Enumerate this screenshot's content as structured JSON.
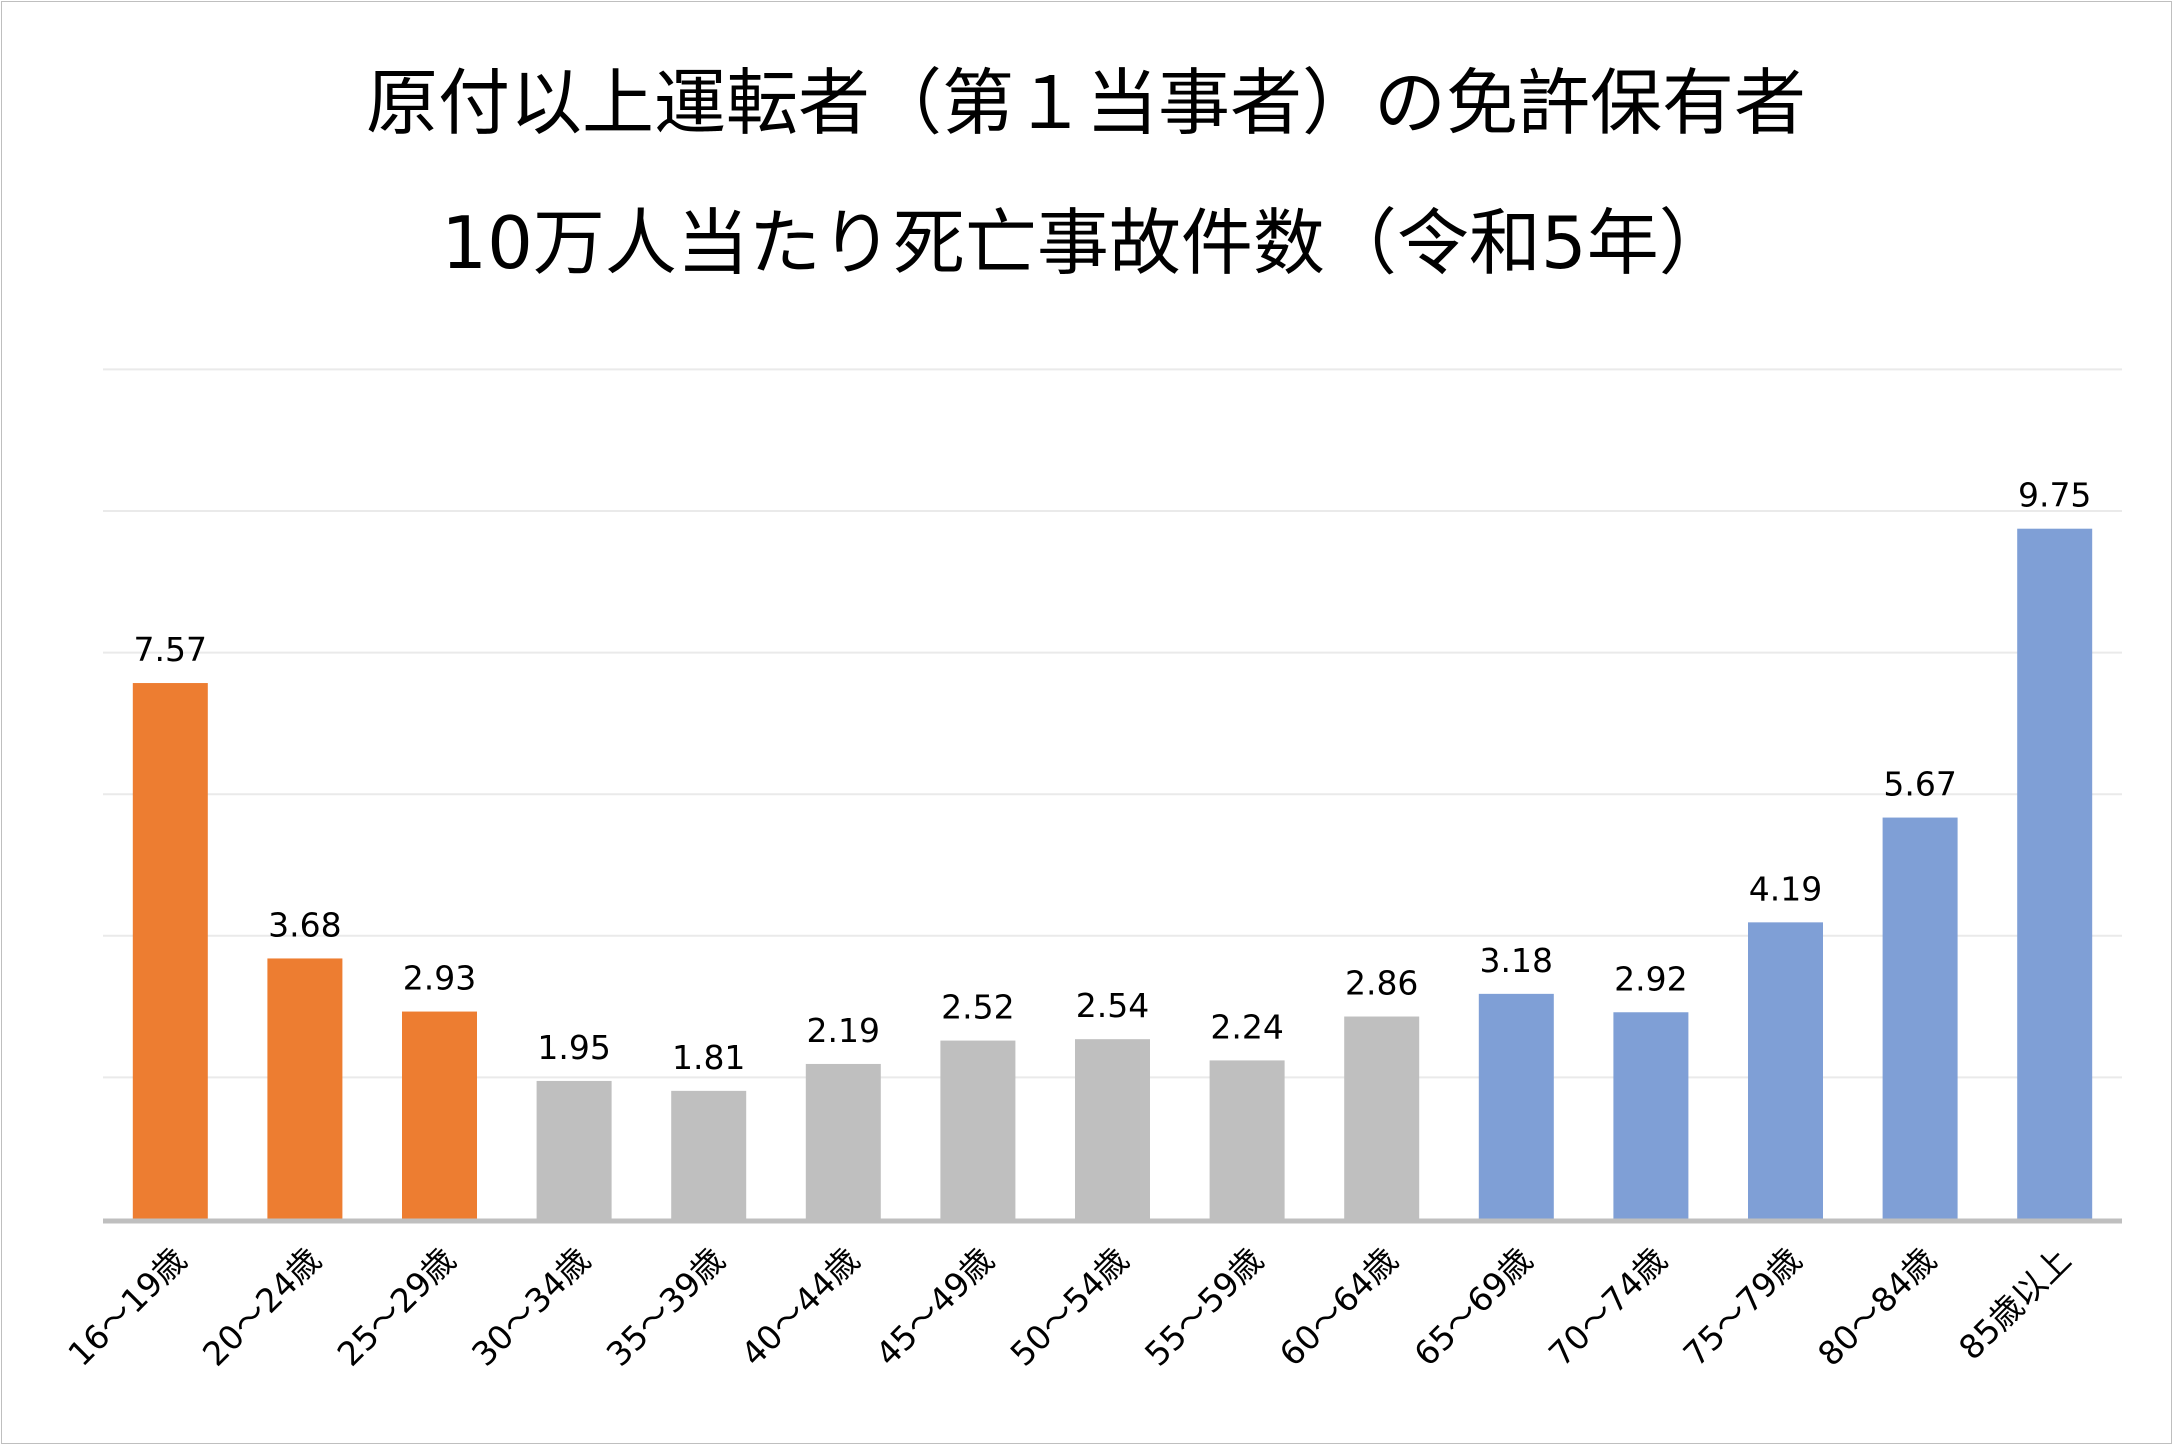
{
  "chart_data": {
    "type": "bar",
    "title_lines": [
      "原付以上運転者（第１当事者）の免許保有者",
      "10万人当たり死亡事故件数（令和5年）"
    ],
    "xlabel": "",
    "ylabel": "",
    "ylim": [
      0,
      12
    ],
    "grid": true,
    "legend": "none",
    "categories": [
      "16～19歳",
      "20～24歳",
      "25～29歳",
      "30～34歳",
      "35～39歳",
      "40～44歳",
      "45～49歳",
      "50～54歳",
      "55～59歳",
      "60～64歳",
      "65～69歳",
      "70～74歳",
      "75～79歳",
      "80～84歳",
      "85歳以上"
    ],
    "values": [
      7.57,
      3.68,
      2.93,
      1.95,
      1.81,
      2.19,
      2.52,
      2.54,
      2.24,
      2.86,
      3.18,
      2.92,
      4.19,
      5.67,
      9.75
    ],
    "value_labels": [
      "7.57",
      "3.68",
      "2.93",
      "1.95",
      "1.81",
      "2.19",
      "2.52",
      "2.54",
      "2.24",
      "2.86",
      "3.18",
      "2.92",
      "4.19",
      "5.67",
      "9.75"
    ],
    "bar_colors": [
      "#ED7D31",
      "#ED7D31",
      "#ED7D31",
      "#BFBFBF",
      "#BFBFBF",
      "#BFBFBF",
      "#BFBFBF",
      "#BFBFBF",
      "#BFBFBF",
      "#BFBFBF",
      "#7F9FD6",
      "#7F9FD6",
      "#7F9FD6",
      "#7F9FD6",
      "#7F9FD6"
    ],
    "gridline_color": "#eaeaea",
    "axis_color": "#bfbfbf"
  }
}
